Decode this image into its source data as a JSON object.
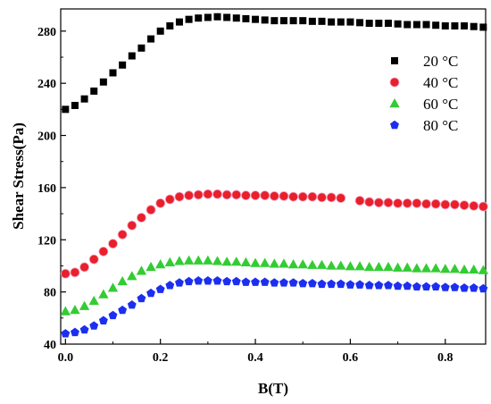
{
  "chart_data": {
    "type": "scatter",
    "xlabel": "B(T)",
    "ylabel": "Shear Stress(Pa)",
    "xlim": [
      -0.01,
      0.885
    ],
    "ylim": [
      40,
      297
    ],
    "xticks": [
      0.0,
      0.2,
      0.4,
      0.6,
      0.8
    ],
    "xtick_labels": [
      "0.0",
      "0.2",
      "0.4",
      "0.6",
      "0.8"
    ],
    "yticks": [
      40,
      80,
      120,
      160,
      200,
      240,
      280
    ],
    "ytick_labels": [
      "40",
      "80",
      "120",
      "160",
      "200",
      "240",
      "280"
    ],
    "legend_position": "top-right",
    "grid": false,
    "series": [
      {
        "name": "20 °C",
        "marker": "square",
        "color": "#000000",
        "x": [
          0.0,
          0.02,
          0.04,
          0.06,
          0.08,
          0.1,
          0.12,
          0.14,
          0.16,
          0.18,
          0.2,
          0.22,
          0.24,
          0.26,
          0.28,
          0.3,
          0.32,
          0.34,
          0.36,
          0.38,
          0.4,
          0.42,
          0.44,
          0.46,
          0.48,
          0.5,
          0.52,
          0.54,
          0.56,
          0.58,
          0.6,
          0.62,
          0.64,
          0.66,
          0.68,
          0.7,
          0.72,
          0.74,
          0.76,
          0.78,
          0.8,
          0.82,
          0.84,
          0.86,
          0.88
        ],
        "y": [
          220,
          223,
          228,
          234,
          241,
          248,
          254,
          261,
          267,
          274,
          280,
          284,
          287,
          289,
          290,
          290.5,
          291,
          290.5,
          290,
          289.5,
          289,
          288.5,
          288,
          288,
          288,
          288,
          287.5,
          287.5,
          287,
          287,
          287,
          286.5,
          286,
          286,
          286,
          285.5,
          285,
          285,
          285,
          284.5,
          284,
          284,
          284,
          283.5,
          283
        ]
      },
      {
        "name": "40 °C",
        "marker": "circle",
        "color": "#e8202a",
        "x": [
          0.0,
          0.02,
          0.04,
          0.06,
          0.08,
          0.1,
          0.12,
          0.14,
          0.16,
          0.18,
          0.2,
          0.22,
          0.24,
          0.26,
          0.28,
          0.3,
          0.32,
          0.34,
          0.36,
          0.38,
          0.4,
          0.42,
          0.44,
          0.46,
          0.48,
          0.5,
          0.52,
          0.54,
          0.56,
          0.58,
          0.62,
          0.64,
          0.66,
          0.68,
          0.7,
          0.72,
          0.74,
          0.76,
          0.78,
          0.8,
          0.82,
          0.84,
          0.86,
          0.88
        ],
        "y": [
          94,
          95,
          99,
          105,
          111,
          117,
          124,
          131,
          137,
          143,
          148,
          151,
          153,
          154,
          154.5,
          155,
          155,
          154.5,
          154.5,
          154,
          154,
          154,
          153.5,
          153.5,
          153,
          153,
          153,
          152.5,
          152.5,
          152,
          150,
          149,
          148.5,
          148.5,
          148,
          148,
          148,
          147.5,
          147.5,
          147,
          147,
          146.5,
          146,
          145.5
        ]
      },
      {
        "name": "60 °C",
        "marker": "triangle",
        "color": "#33cc33",
        "x": [
          0.0,
          0.02,
          0.04,
          0.06,
          0.08,
          0.1,
          0.12,
          0.14,
          0.16,
          0.18,
          0.2,
          0.22,
          0.24,
          0.26,
          0.28,
          0.3,
          0.32,
          0.34,
          0.36,
          0.38,
          0.4,
          0.42,
          0.44,
          0.46,
          0.48,
          0.5,
          0.52,
          0.54,
          0.56,
          0.58,
          0.6,
          0.62,
          0.64,
          0.66,
          0.68,
          0.7,
          0.72,
          0.74,
          0.76,
          0.78,
          0.8,
          0.82,
          0.84,
          0.86,
          0.88
        ],
        "y": [
          65,
          66,
          69,
          73,
          78,
          83,
          88,
          92,
          96,
          99,
          101,
          102.5,
          103.5,
          104,
          104,
          104,
          103.5,
          103,
          103,
          102.5,
          102,
          102,
          101.5,
          101.5,
          101,
          101,
          100.5,
          100.5,
          100,
          100,
          99.5,
          99.5,
          99,
          99,
          99,
          98.5,
          98.5,
          98,
          98,
          98,
          97.5,
          97.5,
          97,
          97,
          96.5
        ]
      },
      {
        "name": "80 °C",
        "marker": "pentagon",
        "color": "#1c2ff0",
        "x": [
          0.0,
          0.02,
          0.04,
          0.06,
          0.08,
          0.1,
          0.12,
          0.14,
          0.16,
          0.18,
          0.2,
          0.22,
          0.24,
          0.26,
          0.28,
          0.3,
          0.32,
          0.34,
          0.36,
          0.38,
          0.4,
          0.42,
          0.44,
          0.46,
          0.48,
          0.5,
          0.52,
          0.54,
          0.56,
          0.58,
          0.6,
          0.62,
          0.64,
          0.66,
          0.68,
          0.7,
          0.72,
          0.74,
          0.76,
          0.78,
          0.8,
          0.82,
          0.84,
          0.86,
          0.88
        ],
        "y": [
          48,
          49,
          51,
          54,
          58,
          62,
          66,
          70,
          75,
          79,
          82,
          85,
          87,
          88,
          88.5,
          88.5,
          88.5,
          88,
          88,
          87.5,
          87.5,
          87.5,
          87,
          87,
          87,
          86.5,
          86.5,
          86,
          86,
          86,
          85.5,
          85.5,
          85,
          85,
          85,
          84.5,
          84.5,
          84,
          84,
          84,
          83.5,
          83.5,
          83,
          83,
          82.5
        ]
      }
    ]
  }
}
